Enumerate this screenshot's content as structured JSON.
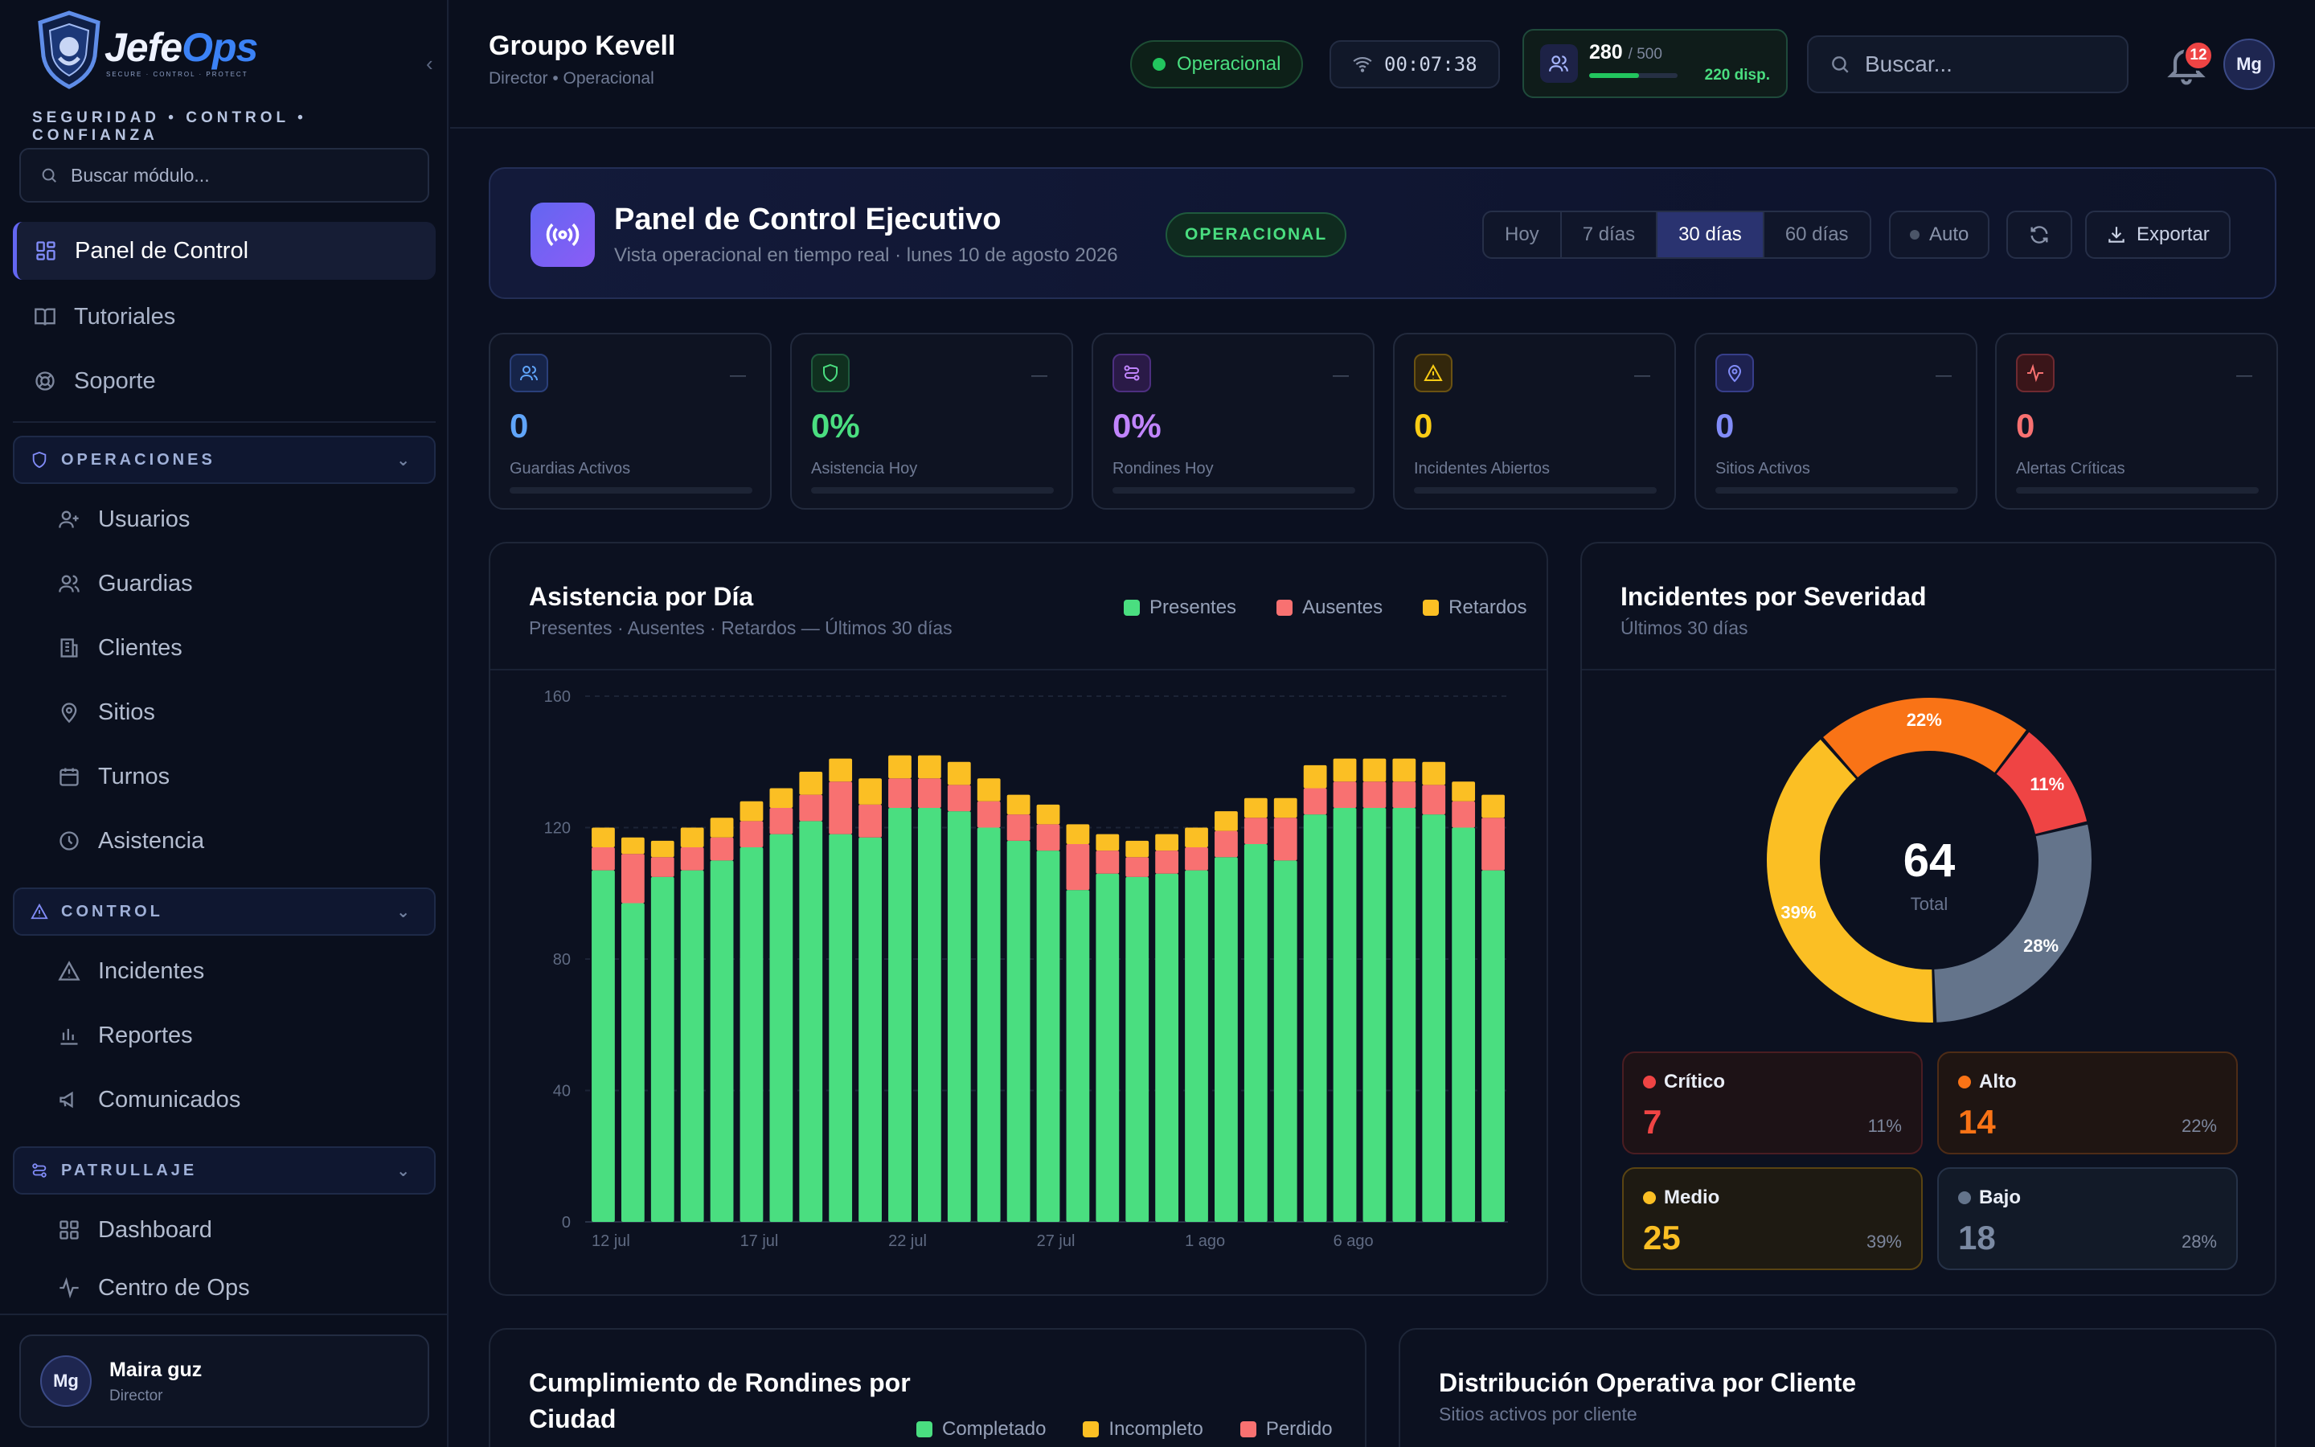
{
  "sidebar": {
    "logo": {
      "brand_a": "Jefe",
      "brand_b": "Ops",
      "tagline": "SECURE · CONTROL · PROTECT",
      "motto": "SEGURIDAD • CONTROL • CONFIANZA"
    },
    "search_placeholder": "Buscar módulo...",
    "top_items": [
      {
        "label": "Panel de Control",
        "icon": "grid-icon",
        "active": true
      },
      {
        "label": "Tutoriales",
        "icon": "book-icon"
      },
      {
        "label": "Soporte",
        "icon": "lifebuoy-icon"
      }
    ],
    "sections": [
      {
        "label": "OPERACIONES",
        "icon": "shield-icon",
        "items": [
          {
            "label": "Usuarios",
            "icon": "user-plus-icon"
          },
          {
            "label": "Guardias",
            "icon": "users-icon"
          },
          {
            "label": "Clientes",
            "icon": "building-icon"
          },
          {
            "label": "Sitios",
            "icon": "map-pin-icon"
          },
          {
            "label": "Turnos",
            "icon": "calendar-icon"
          },
          {
            "label": "Asistencia",
            "icon": "clock-icon"
          }
        ]
      },
      {
        "label": "CONTROL",
        "icon": "alert-triangle-icon",
        "items": [
          {
            "label": "Incidentes",
            "icon": "alert-triangle-icon"
          },
          {
            "label": "Reportes",
            "icon": "bar-chart-icon"
          },
          {
            "label": "Comunicados",
            "icon": "megaphone-icon"
          }
        ]
      },
      {
        "label": "PATRULLAJE",
        "icon": "route-icon",
        "items": [
          {
            "label": "Dashboard",
            "icon": "grid-icon"
          },
          {
            "label": "Centro de Ops",
            "icon": "activity-icon"
          }
        ]
      }
    ],
    "user": {
      "initials": "Mg",
      "name": "Maira guz",
      "role": "Director"
    }
  },
  "topbar": {
    "org_name": "Groupo Kevell",
    "org_role": "Director • Operacional",
    "status": "Operacional",
    "timer": "00:07:38",
    "capacity": {
      "current": "280",
      "max": "/ 500",
      "available": "220 disp.",
      "fill_fraction": 0.56
    },
    "search_placeholder": "Buscar...",
    "notifications": "12",
    "avatar": "Mg"
  },
  "exec": {
    "title": "Panel de Control Ejecutivo",
    "subtitle": "Vista operacional en tiempo real · lunes 10 de agosto 2026",
    "badge": "OPERACIONAL",
    "ranges": [
      "Hoy",
      "7 días",
      "30 días",
      "60 días"
    ],
    "selected_range": "30 días",
    "auto": "Auto",
    "export": "Exportar"
  },
  "kpis": [
    {
      "value": "0",
      "label": "Guardias Activos",
      "icon": "users-icon",
      "color": "#60a5fa",
      "dash": "—"
    },
    {
      "value": "0%",
      "label": "Asistencia Hoy",
      "icon": "shield-icon",
      "color": "#4ade80",
      "dash": "—"
    },
    {
      "value": "0%",
      "label": "Rondines Hoy",
      "icon": "route-icon",
      "color": "#c084fc",
      "dash": "—"
    },
    {
      "value": "0",
      "label": "Incidentes Abiertos",
      "icon": "alert-triangle-icon",
      "color": "#facc15",
      "dash": "—"
    },
    {
      "value": "0",
      "label": "Sitios Activos",
      "icon": "map-pin-icon",
      "color": "#818cf8",
      "dash": "—"
    },
    {
      "value": "0",
      "label": "Alertas Críticas",
      "icon": "activity-icon",
      "color": "#f87171",
      "dash": "—"
    }
  ],
  "attendance": {
    "title": "Asistencia por Día",
    "subtitle": "Presentes · Ausentes · Retardos — Últimos 30 días",
    "legend": [
      {
        "name": "Presentes",
        "color": "#4ade80"
      },
      {
        "name": "Ausentes",
        "color": "#f87171"
      },
      {
        "name": "Retardos",
        "color": "#fbbf24"
      }
    ]
  },
  "severity": {
    "title": "Incidentes por Severidad",
    "subtitle": "Últimos 30 días",
    "total": "64",
    "total_label": "Total",
    "tiles": [
      {
        "name": "Crítico",
        "value": "7",
        "pct": "11%",
        "color": "#ef4444"
      },
      {
        "name": "Alto",
        "value": "14",
        "pct": "22%",
        "color": "#f97316"
      },
      {
        "name": "Medio",
        "value": "25",
        "pct": "39%",
        "color": "#fbbf24"
      },
      {
        "name": "Bajo",
        "value": "18",
        "pct": "28%",
        "color": "#64748b"
      }
    ]
  },
  "rondines": {
    "title_line1": "Cumplimiento de Rondines por",
    "title_line2": "Ciudad",
    "legend": [
      {
        "name": "Completado",
        "color": "#4ade80"
      },
      {
        "name": "Incompleto",
        "color": "#fbbf24"
      },
      {
        "name": "Perdido",
        "color": "#f87171"
      }
    ]
  },
  "distribucion": {
    "title": "Distribución Operativa por Cliente",
    "subtitle": "Sitios activos por cliente"
  },
  "chart_data": [
    {
      "type": "bar",
      "stacked": true,
      "title": "Asistencia por Día",
      "ylim": [
        0,
        160
      ],
      "yticks": [
        0,
        40,
        80,
        120,
        160
      ],
      "x_tick_labels": [
        "12 jul",
        "17 jul",
        "22 jul",
        "27 jul",
        "1 ago",
        "6 ago"
      ],
      "x_tick_every": 5,
      "grid": true,
      "legend_position": "top-right",
      "series": [
        {
          "name": "Presentes",
          "color": "#4ade80",
          "values": [
            107,
            97,
            105,
            107,
            110,
            114,
            118,
            122,
            118,
            117,
            126,
            126,
            125,
            120,
            116,
            113,
            101,
            106,
            105,
            106,
            107,
            111,
            115,
            110,
            124,
            126,
            126,
            126,
            124,
            120,
            107
          ]
        },
        {
          "name": "Ausentes",
          "color": "#f87171",
          "values": [
            7,
            15,
            6,
            7,
            7,
            8,
            8,
            8,
            16,
            10,
            9,
            9,
            8,
            8,
            8,
            8,
            14,
            7,
            6,
            7,
            7,
            8,
            8,
            13,
            8,
            8,
            8,
            8,
            9,
            8,
            16
          ]
        },
        {
          "name": "Retardos",
          "color": "#fbbf24",
          "values": [
            6,
            5,
            5,
            6,
            6,
            6,
            6,
            7,
            7,
            8,
            7,
            7,
            7,
            7,
            6,
            6,
            6,
            5,
            5,
            5,
            6,
            6,
            6,
            6,
            7,
            7,
            7,
            7,
            7,
            6,
            7
          ]
        }
      ]
    },
    {
      "type": "pie",
      "donut": true,
      "title": "Incidentes por Severidad",
      "total": 64,
      "slices": [
        {
          "name": "Alto",
          "value": 14,
          "pct": "22%",
          "color": "#f97316"
        },
        {
          "name": "Crítico",
          "value": 7,
          "pct": "11%",
          "color": "#ef4444"
        },
        {
          "name": "Bajo",
          "value": 18,
          "pct": "28%",
          "color": "#64748b"
        },
        {
          "name": "Medio",
          "value": 25,
          "pct": "39%",
          "color": "#fbbf24"
        }
      ]
    }
  ]
}
